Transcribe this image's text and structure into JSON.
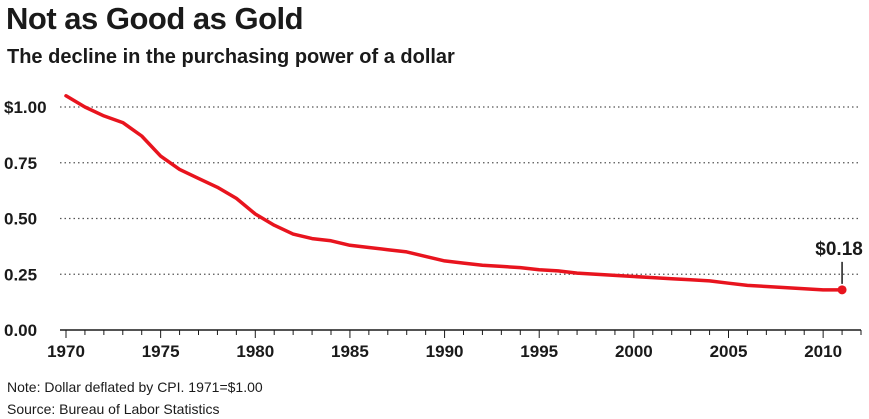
{
  "chart_data": {
    "type": "line",
    "title": "Not as Good as Gold",
    "subtitle": "The decline in the purchasing power of a dollar",
    "xlabel": "",
    "ylabel": "",
    "xlim": [
      1970,
      2012
    ],
    "ylim": [
      0,
      1.0
    ],
    "grid": "horizontal dotted",
    "yticks": [
      {
        "value": 0,
        "label": "0.00"
      },
      {
        "value": 0.25,
        "label": "0.25"
      },
      {
        "value": 0.5,
        "label": "0.50"
      },
      {
        "value": 0.75,
        "label": "0.75"
      },
      {
        "value": 1.0,
        "label": "$1.00"
      }
    ],
    "xticks": [
      {
        "value": 1970,
        "label": "1970"
      },
      {
        "value": 1975,
        "label": "1975"
      },
      {
        "value": 1980,
        "label": "1980"
      },
      {
        "value": 1985,
        "label": "1985"
      },
      {
        "value": 1990,
        "label": "1990"
      },
      {
        "value": 1995,
        "label": "1995"
      },
      {
        "value": 2000,
        "label": "2000"
      },
      {
        "value": 2005,
        "label": "2005"
      },
      {
        "value": 2010,
        "label": "2010"
      }
    ],
    "series": [
      {
        "name": "Purchasing power of a dollar",
        "color": "#e8141e",
        "x": [
          1970,
          1971,
          1972,
          1973,
          1974,
          1975,
          1976,
          1977,
          1978,
          1979,
          1980,
          1981,
          1982,
          1983,
          1984,
          1985,
          1986,
          1987,
          1988,
          1989,
          1990,
          1991,
          1992,
          1993,
          1994,
          1995,
          1996,
          1997,
          1998,
          1999,
          2000,
          2001,
          2002,
          2003,
          2004,
          2005,
          2006,
          2007,
          2008,
          2009,
          2010,
          2011
        ],
        "values": [
          1.05,
          1.0,
          0.96,
          0.93,
          0.87,
          0.78,
          0.72,
          0.68,
          0.64,
          0.59,
          0.52,
          0.47,
          0.43,
          0.41,
          0.4,
          0.38,
          0.37,
          0.36,
          0.35,
          0.33,
          0.31,
          0.3,
          0.29,
          0.285,
          0.28,
          0.27,
          0.265,
          0.255,
          0.25,
          0.245,
          0.24,
          0.235,
          0.23,
          0.225,
          0.22,
          0.21,
          0.2,
          0.195,
          0.19,
          0.185,
          0.18,
          0.18
        ]
      }
    ],
    "annotations": [
      {
        "text": "$0.18",
        "x": 2011,
        "y": 0.18
      }
    ]
  },
  "footer": {
    "note": "Note: Dollar deflated by CPI. 1971=$1.00",
    "source": "Source: Bureau of Labor Statistics"
  }
}
